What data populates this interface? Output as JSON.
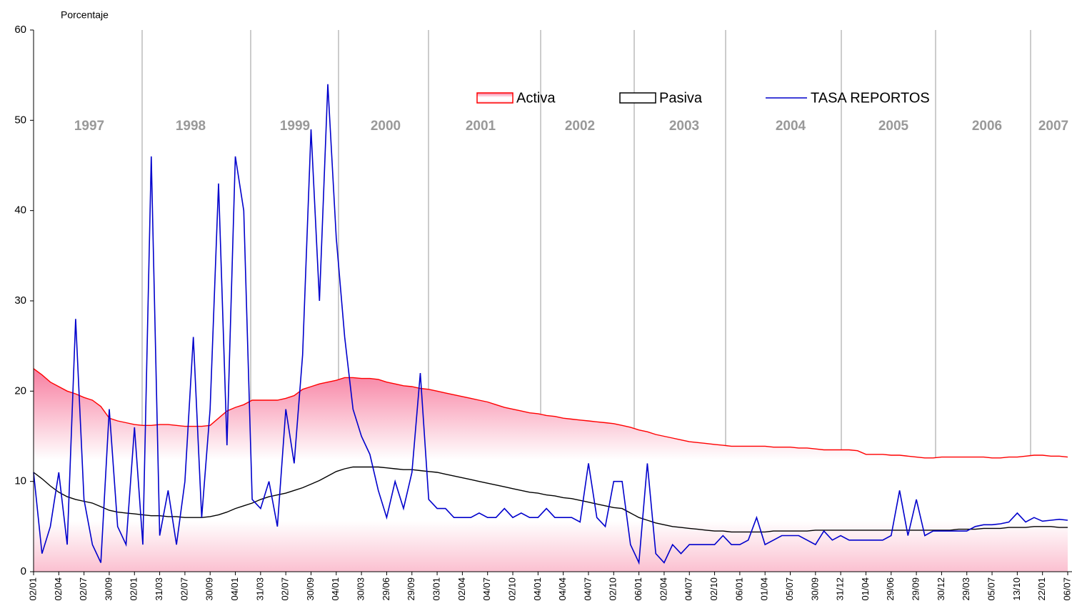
{
  "chart_data": {
    "type": "line",
    "y_label": "Porcentaje",
    "categories": [
      "02/01",
      null,
      null,
      "02/04",
      null,
      null,
      "02/07",
      null,
      null,
      "30/09",
      null,
      null,
      "02/01",
      null,
      null,
      "31/03",
      null,
      null,
      "02/07",
      null,
      null,
      "30/09",
      null,
      null,
      "04/01",
      null,
      null,
      "31/03",
      null,
      null,
      "02/07",
      null,
      null,
      "30/09",
      null,
      null,
      "04/01",
      null,
      null,
      "30/03",
      null,
      null,
      "29/06",
      null,
      null,
      "29/09",
      null,
      null,
      "03/01",
      null,
      null,
      "02/04",
      null,
      null,
      "04/07",
      null,
      null,
      "02/10",
      null,
      null,
      "04/01",
      null,
      null,
      "04/04",
      null,
      null,
      "04/07",
      null,
      null,
      "02/10",
      null,
      null,
      "06/01",
      null,
      null,
      "02/04",
      null,
      null,
      "04/07",
      null,
      null,
      "02/10",
      null,
      null,
      "06/01",
      null,
      null,
      "01/04",
      null,
      null,
      "05/07",
      null,
      null,
      "30/09",
      null,
      null,
      "31/12",
      null,
      null,
      "01/04",
      null,
      null,
      "29/06",
      null,
      null,
      "29/09",
      null,
      null,
      "30/12",
      null,
      null,
      "29/03",
      null,
      null,
      "05/07",
      null,
      null,
      "13/10",
      null,
      null,
      "22/01",
      null,
      null,
      "06/07"
    ],
    "series": [
      {
        "name": "Activa",
        "kind": "area",
        "color": "#ff0000",
        "values": [
          22.5,
          21.8,
          21,
          20.5,
          20,
          19.7,
          19.3,
          19,
          18.3,
          17,
          16.7,
          16.5,
          16.3,
          16.2,
          16.2,
          16.3,
          16.3,
          16.2,
          16.1,
          16.1,
          16.1,
          16.2,
          17,
          17.8,
          18.2,
          18.5,
          19,
          19,
          19,
          19,
          19.2,
          19.5,
          20.2,
          20.5,
          20.8,
          21,
          21.2,
          21.5,
          21.5,
          21.4,
          21.4,
          21.3,
          21,
          20.8,
          20.6,
          20.5,
          20.3,
          20.2,
          20,
          19.8,
          19.6,
          19.4,
          19.2,
          19,
          18.8,
          18.5,
          18.2,
          18,
          17.8,
          17.6,
          17.5,
          17.3,
          17.2,
          17,
          16.9,
          16.8,
          16.7,
          16.6,
          16.5,
          16.4,
          16.2,
          16,
          15.7,
          15.5,
          15.2,
          15,
          14.8,
          14.6,
          14.4,
          14.3,
          14.2,
          14.1,
          14,
          13.9,
          13.9,
          13.9,
          13.9,
          13.9,
          13.8,
          13.8,
          13.8,
          13.7,
          13.7,
          13.6,
          13.5,
          13.5,
          13.5,
          13.5,
          13.4,
          13,
          13,
          13,
          12.9,
          12.9,
          12.8,
          12.7,
          12.6,
          12.6,
          12.7,
          12.7,
          12.7,
          12.7,
          12.7,
          12.7,
          12.6,
          12.6,
          12.7,
          12.7,
          12.8,
          12.9,
          12.9,
          12.8,
          12.8,
          12.7
        ]
      },
      {
        "name": "Pasiva",
        "kind": "line",
        "color": "#000000",
        "values": [
          11,
          10.3,
          9.5,
          8.8,
          8.3,
          8,
          7.8,
          7.6,
          7.2,
          6.8,
          6.6,
          6.5,
          6.4,
          6.3,
          6.2,
          6.2,
          6.1,
          6.1,
          6,
          6,
          6,
          6.1,
          6.3,
          6.6,
          7,
          7.3,
          7.6,
          8,
          8.3,
          8.5,
          8.7,
          9,
          9.3,
          9.7,
          10.1,
          10.6,
          11.1,
          11.4,
          11.6,
          11.6,
          11.6,
          11.6,
          11.5,
          11.4,
          11.3,
          11.3,
          11.2,
          11.1,
          11,
          10.8,
          10.6,
          10.4,
          10.2,
          10,
          9.8,
          9.6,
          9.4,
          9.2,
          9,
          8.8,
          8.7,
          8.5,
          8.4,
          8.2,
          8.1,
          7.9,
          7.7,
          7.5,
          7.3,
          7.1,
          7,
          6.5,
          6,
          5.7,
          5.4,
          5.2,
          5,
          4.9,
          4.8,
          4.7,
          4.6,
          4.5,
          4.5,
          4.4,
          4.4,
          4.4,
          4.4,
          4.4,
          4.5,
          4.5,
          4.5,
          4.5,
          4.5,
          4.6,
          4.6,
          4.6,
          4.6,
          4.6,
          4.6,
          4.6,
          4.6,
          4.6,
          4.6,
          4.6,
          4.6,
          4.6,
          4.6,
          4.6,
          4.6,
          4.6,
          4.7,
          4.7,
          4.7,
          4.8,
          4.8,
          4.8,
          4.9,
          4.9,
          4.9,
          5,
          5,
          5,
          4.9,
          4.9
        ]
      },
      {
        "name": "TASA REPORTOS",
        "kind": "line",
        "color": "#0000cc",
        "values": [
          11,
          2,
          5,
          11,
          3,
          28,
          8,
          3,
          1,
          18,
          5,
          3,
          16,
          3,
          46,
          4,
          9,
          3,
          10,
          26,
          6,
          18,
          43,
          14,
          46,
          40,
          8,
          7,
          10,
          5,
          18,
          12,
          24,
          49,
          30,
          54,
          37,
          26,
          18,
          15,
          13,
          9,
          6,
          10,
          7,
          11,
          22,
          8,
          7,
          7,
          6,
          6,
          6,
          6.5,
          6,
          6,
          7,
          6,
          6.5,
          6,
          6,
          7,
          6,
          6,
          6,
          5.5,
          12,
          6,
          5,
          10,
          10,
          3,
          1,
          12,
          2,
          1,
          3,
          2,
          3,
          3,
          3,
          3,
          4,
          3,
          3,
          3.5,
          6,
          3,
          3.5,
          4,
          4,
          4,
          3.5,
          3,
          4.5,
          3.5,
          4,
          3.5,
          3.5,
          3.5,
          3.5,
          3.5,
          4,
          9,
          4,
          8,
          4,
          4.5,
          4.5,
          4.5,
          4.5,
          4.5,
          5,
          5.2,
          5.2,
          5.3,
          5.5,
          6.5,
          5.5,
          6,
          5.6,
          5.7,
          5.8,
          5.7
        ]
      }
    ],
    "annotations": [
      "1997",
      "1998",
      "1999",
      "2000",
      "2001",
      "2002",
      "2003",
      "2004",
      "2005",
      "2006",
      "2007"
    ],
    "ylim": [
      0,
      60
    ],
    "yticks": [
      0,
      10,
      20,
      30,
      40,
      50,
      60
    ]
  }
}
